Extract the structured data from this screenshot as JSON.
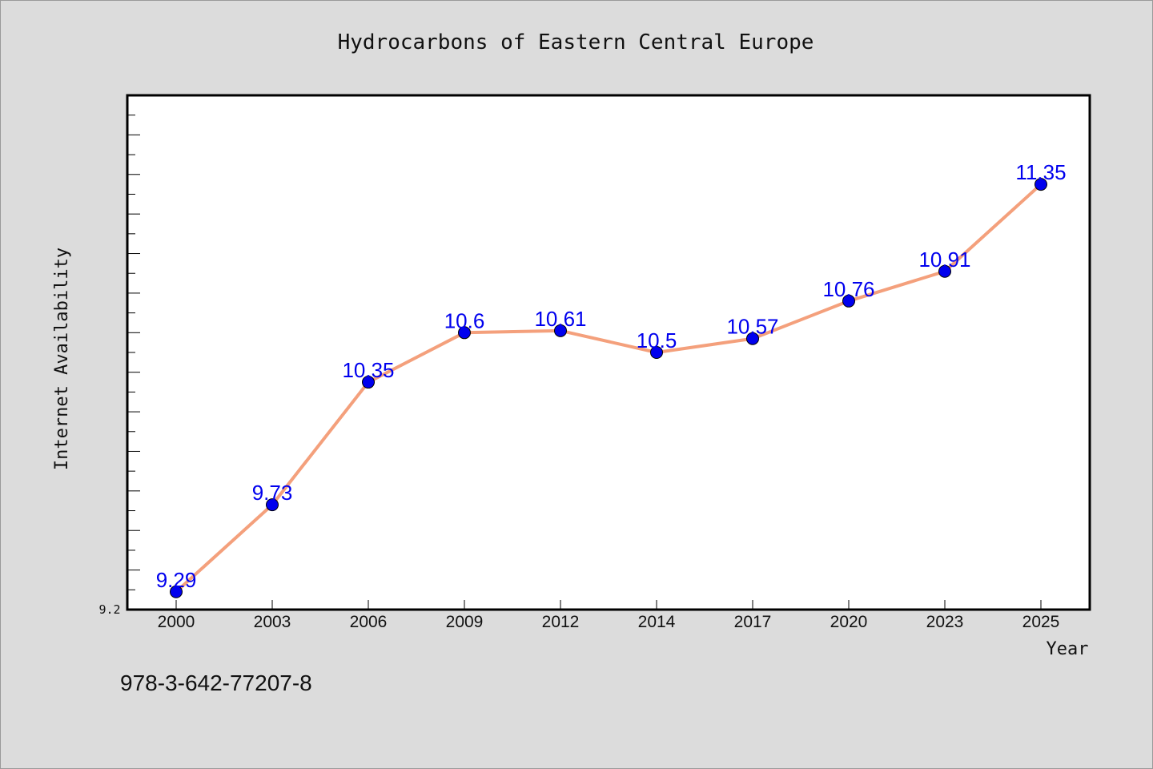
{
  "chart_data": {
    "type": "line",
    "title": "Hydrocarbons of Eastern Central Europe",
    "xlabel": "Year",
    "ylabel": "Internet Availability",
    "categories": [
      "2000",
      "2003",
      "2006",
      "2009",
      "2012",
      "2014",
      "2017",
      "2020",
      "2023",
      "2025"
    ],
    "series": [
      {
        "values": [
          9.29,
          9.73,
          10.35,
          10.6,
          10.61,
          10.5,
          10.57,
          10.76,
          10.91,
          11.35
        ],
        "labels": [
          "9.29",
          "9.73",
          "10.35",
          "10.6",
          "10.61",
          "10.5",
          "10.57",
          "10.76",
          "10.91",
          "11.35"
        ]
      }
    ],
    "ylim": [
      9.2,
      11.8
    ],
    "yticks_labeled": [
      "9.2"
    ],
    "grid": false,
    "line_color": "#f4a07c",
    "marker_color": "#0000ee",
    "label_color": "#0000ee"
  },
  "footer_text": "978-3-642-77207-8"
}
